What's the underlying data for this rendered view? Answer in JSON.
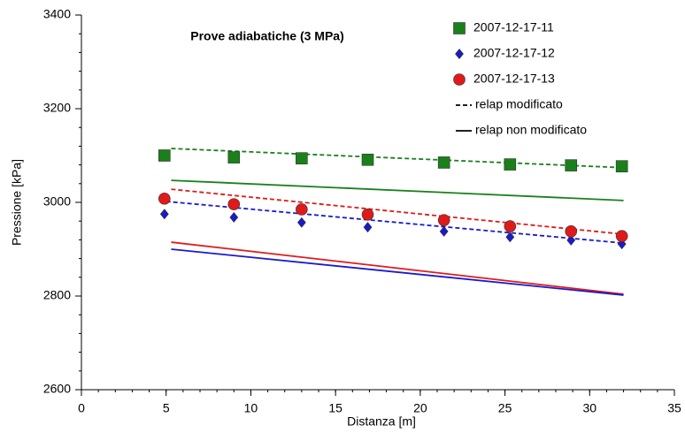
{
  "chart_data": {
    "type": "scatter",
    "title": "Prove adiabatiche (3 MPa)",
    "x_label": "Distanza [m]",
    "y_label": "Pressione [kPa]",
    "xlim": [
      0,
      35
    ],
    "xticks": [
      0,
      5,
      10,
      15,
      20,
      25,
      30,
      35
    ],
    "xminor": 1,
    "ylim": [
      2600,
      3400
    ],
    "yticks": [
      2600,
      2800,
      3000,
      3200,
      3400
    ],
    "yminor": 40,
    "x": [
      4.9,
      9.0,
      13.0,
      16.9,
      21.4,
      25.3,
      28.9,
      31.9
    ],
    "series": [
      {
        "name": "2007-12-17-11",
        "color": "#1a801a",
        "marker": "square",
        "values": [
          3100,
          3096,
          3094,
          3091,
          3085,
          3081,
          3079,
          3077
        ]
      },
      {
        "name": "2007-12-17-12",
        "color": "#1a1acc",
        "marker": "diamond",
        "values": [
          2975,
          2968,
          2957,
          2947,
          2938,
          2926,
          2919,
          2911
        ]
      },
      {
        "name": "2007-12-17-13",
        "color": "#e01a1a",
        "marker": "circle",
        "values": [
          3008,
          2996,
          2985,
          2974,
          2962,
          2949,
          2938,
          2928
        ]
      }
    ],
    "line_styles": [
      {
        "label": "relap  modificato",
        "dashed": true
      },
      {
        "label": "relap  non modificato",
        "dashed": false
      }
    ],
    "lines": [
      {
        "color": "#1a801a",
        "dashed": true,
        "x": [
          5.3,
          32
        ],
        "values": [
          3115,
          3074
        ]
      },
      {
        "color": "#1a1acc",
        "dashed": true,
        "x": [
          5.0,
          32
        ],
        "values": [
          3002,
          2913
        ]
      },
      {
        "color": "#e01a1a",
        "dashed": true,
        "x": [
          5.3,
          32
        ],
        "values": [
          3028,
          2932
        ]
      },
      {
        "color": "#1a801a",
        "dashed": false,
        "x": [
          5.3,
          32
        ],
        "values": [
          3047,
          3004
        ]
      },
      {
        "color": "#e01a1a",
        "dashed": false,
        "x": [
          5.3,
          32
        ],
        "values": [
          2915,
          2804
        ]
      },
      {
        "color": "#1a1acc",
        "dashed": false,
        "x": [
          5.3,
          32
        ],
        "values": [
          2900,
          2802
        ]
      }
    ]
  }
}
